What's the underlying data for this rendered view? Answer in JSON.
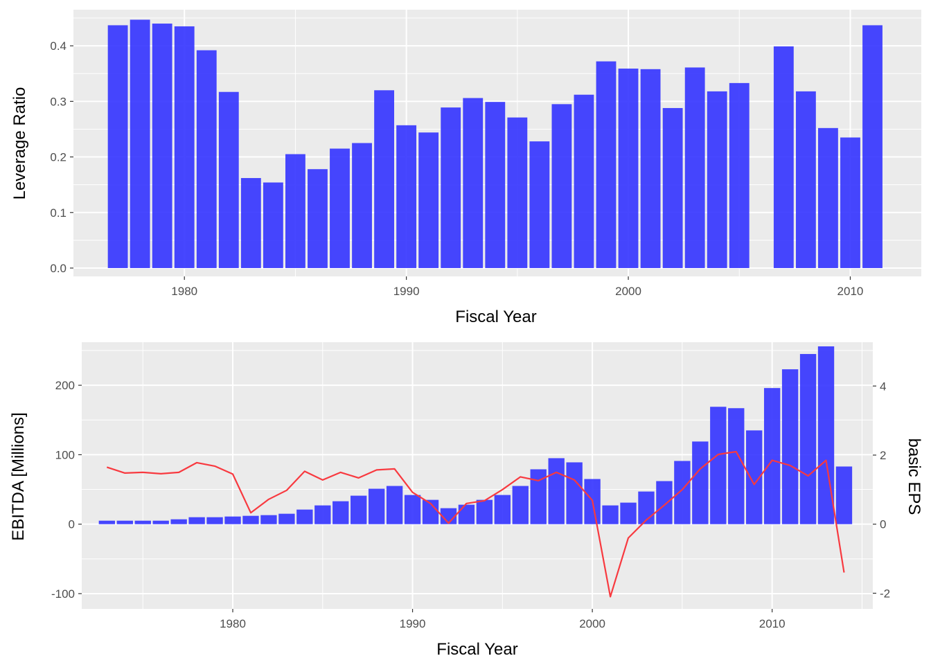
{
  "chart_data": [
    {
      "type": "bar",
      "xlabel": "Fiscal Year",
      "ylabel": "Leverage Ratio",
      "xlim": [
        1975,
        2013.2
      ],
      "ylim": [
        -0.015,
        0.465
      ],
      "x_ticks": [
        1980,
        1990,
        2000,
        2010
      ],
      "x_tick_labels": [
        "1980",
        "1990",
        "2000",
        "2010"
      ],
      "y_ticks": [
        0.0,
        0.1,
        0.2,
        0.3,
        0.4
      ],
      "y_tick_labels": [
        "0.0",
        "0.1",
        "0.2",
        "0.3",
        "0.4"
      ],
      "grid": true,
      "bar_color": "#3333ff",
      "x": [
        1977,
        1978,
        1979,
        1980,
        1981,
        1982,
        1983,
        1984,
        1985,
        1986,
        1987,
        1988,
        1989,
        1990,
        1991,
        1992,
        1993,
        1994,
        1995,
        1996,
        1997,
        1998,
        1999,
        2000,
        2001,
        2002,
        2003,
        2004,
        2005,
        2007,
        2008,
        2009,
        2010,
        2011
      ],
      "values": [
        0.437,
        0.447,
        0.44,
        0.435,
        0.392,
        0.317,
        0.162,
        0.154,
        0.205,
        0.178,
        0.215,
        0.225,
        0.32,
        0.257,
        0.244,
        0.289,
        0.306,
        0.299,
        0.271,
        0.228,
        0.295,
        0.312,
        0.372,
        0.359,
        0.358,
        0.288,
        0.361,
        0.318,
        0.333,
        0.399,
        0.318,
        0.252,
        0.235,
        0.437
      ]
    },
    {
      "type": "bar+line",
      "xlabel": "Fiscal Year",
      "ylabel": "EBITDA [Millions]",
      "y2label": "basic EPS",
      "xlim": [
        1971.6,
        2015.6
      ],
      "ylim": [
        -122,
        262
      ],
      "y2lim": [
        -2.4533,
        5.2688
      ],
      "x_ticks": [
        1980,
        1990,
        2000,
        2010
      ],
      "x_tick_labels": [
        "1980",
        "1990",
        "2000",
        "2010"
      ],
      "y_ticks": [
        -100,
        0,
        100,
        200
      ],
      "y_tick_labels": [
        "-100",
        "0",
        "100",
        "200"
      ],
      "y2_ticks": [
        -2,
        0,
        2,
        4
      ],
      "y2_tick_labels": [
        "-2",
        "0",
        "2",
        "4"
      ],
      "grid": true,
      "bar_color": "#3333ff",
      "line_color": "#f8393f",
      "series": [
        {
          "type": "bar",
          "axis": "left",
          "x": [
            1973,
            1974,
            1975,
            1976,
            1977,
            1978,
            1979,
            1980,
            1981,
            1982,
            1983,
            1984,
            1985,
            1986,
            1987,
            1988,
            1989,
            1990,
            1991,
            1992,
            1993,
            1994,
            1995,
            1996,
            1997,
            1998,
            1999,
            2000,
            2001,
            2002,
            2003,
            2004,
            2005,
            2006,
            2007,
            2008,
            2009,
            2010,
            2011,
            2012,
            2013,
            2014
          ],
          "values": [
            5,
            5,
            5,
            5,
            7,
            10,
            10,
            11,
            12,
            13,
            15,
            21,
            27,
            33,
            41,
            51,
            55,
            42,
            35,
            23,
            28,
            35,
            42,
            55,
            79,
            95,
            89,
            65,
            27,
            31,
            47,
            62,
            91,
            119,
            169,
            167,
            135,
            196,
            223,
            245,
            256,
            83
          ]
        },
        {
          "type": "line",
          "axis": "right",
          "x": [
            1973,
            1974,
            1975,
            1976,
            1977,
            1978,
            1979,
            1980,
            1981,
            1982,
            1983,
            1984,
            1985,
            1986,
            1987,
            1988,
            1989,
            1990,
            1991,
            1992,
            1993,
            1994,
            1995,
            1996,
            1997,
            1998,
            1999,
            2000,
            2001,
            2002,
            2003,
            2004,
            2005,
            2006,
            2007,
            2008,
            2009,
            2010,
            2011,
            2012,
            2013,
            2014
          ],
          "values": [
            1.65,
            1.48,
            1.5,
            1.46,
            1.5,
            1.78,
            1.68,
            1.45,
            0.33,
            0.72,
            0.98,
            1.53,
            1.28,
            1.5,
            1.34,
            1.57,
            1.6,
            0.92,
            0.6,
            0.03,
            0.6,
            0.68,
            1.0,
            1.37,
            1.26,
            1.5,
            1.28,
            0.69,
            -2.1,
            -0.4,
            0.12,
            0.55,
            1.0,
            1.6,
            2.02,
            2.1,
            1.15,
            1.85,
            1.7,
            1.4,
            1.85,
            -1.4
          ]
        }
      ]
    }
  ]
}
